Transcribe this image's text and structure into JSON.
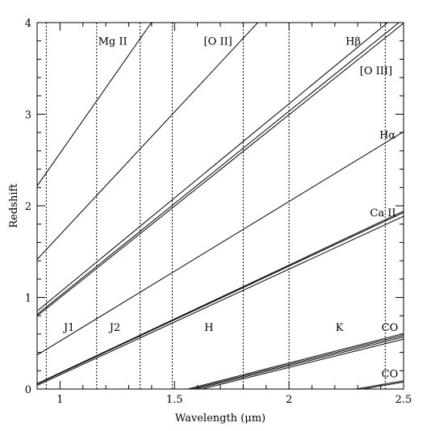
{
  "chart_data": {
    "type": "line",
    "xlabel": "Wavelength (μm)",
    "ylabel": "Redshift",
    "xlim": [
      0.9,
      2.5
    ],
    "ylim": [
      0,
      4
    ],
    "x_ticks": [
      {
        "value": 1,
        "label": "1"
      },
      {
        "value": 1.5,
        "label": "1.5"
      },
      {
        "value": 2,
        "label": "2"
      },
      {
        "value": 2.5,
        "label": "2.5"
      }
    ],
    "y_ticks": [
      {
        "value": 0,
        "label": "0"
      },
      {
        "value": 1,
        "label": "1"
      },
      {
        "value": 2,
        "label": "2"
      },
      {
        "value": 3,
        "label": "3"
      },
      {
        "value": 4,
        "label": "4"
      }
    ],
    "x_minor_step": 0.1,
    "y_minor_step": 0.2,
    "band_edges": [
      0.94,
      1.16,
      1.35,
      1.49,
      1.8,
      2.0,
      2.42
    ],
    "series": [
      {
        "id": "mg2",
        "rest_wavelengths_um": [
          0.2798
        ]
      },
      {
        "id": "o2",
        "rest_wavelengths_um": [
          0.3727
        ]
      },
      {
        "id": "hbeta_o3",
        "rest_wavelengths_um": [
          0.4861,
          0.4959,
          0.5007
        ]
      },
      {
        "id": "halpha",
        "rest_wavelengths_um": [
          0.6563
        ]
      },
      {
        "id": "ca2",
        "rest_wavelengths_um": [
          0.8498,
          0.8542,
          0.8662
        ]
      },
      {
        "id": "co_1",
        "rest_wavelengths_um": [
          1.5578,
          1.5755,
          1.594,
          1.6187
        ]
      },
      {
        "id": "co_2",
        "rest_wavelengths_um": [
          2.2935,
          2.3227
        ]
      }
    ],
    "line_labels": [
      {
        "text": "Mg II",
        "x": 1.23,
        "y": 3.8
      },
      {
        "text": "[O II]",
        "x": 1.69,
        "y": 3.8
      },
      {
        "text": "Hβ",
        "x": 2.28,
        "y": 3.8
      },
      {
        "text": "[O III]",
        "x": 2.38,
        "y": 3.48
      },
      {
        "text": "Hα",
        "x": 2.43,
        "y": 2.78
      },
      {
        "text": "Ca II",
        "x": 2.41,
        "y": 1.93
      },
      {
        "text": "CO",
        "x": 2.44,
        "y": 0.68
      },
      {
        "text": "CO",
        "x": 2.44,
        "y": 0.17
      }
    ],
    "band_labels": [
      {
        "text": "J1",
        "x": 1.04,
        "y": 0.68
      },
      {
        "text": "J2",
        "x": 1.24,
        "y": 0.68
      },
      {
        "text": "H",
        "x": 1.65,
        "y": 0.68
      },
      {
        "text": "K",
        "x": 2.22,
        "y": 0.68
      }
    ]
  }
}
